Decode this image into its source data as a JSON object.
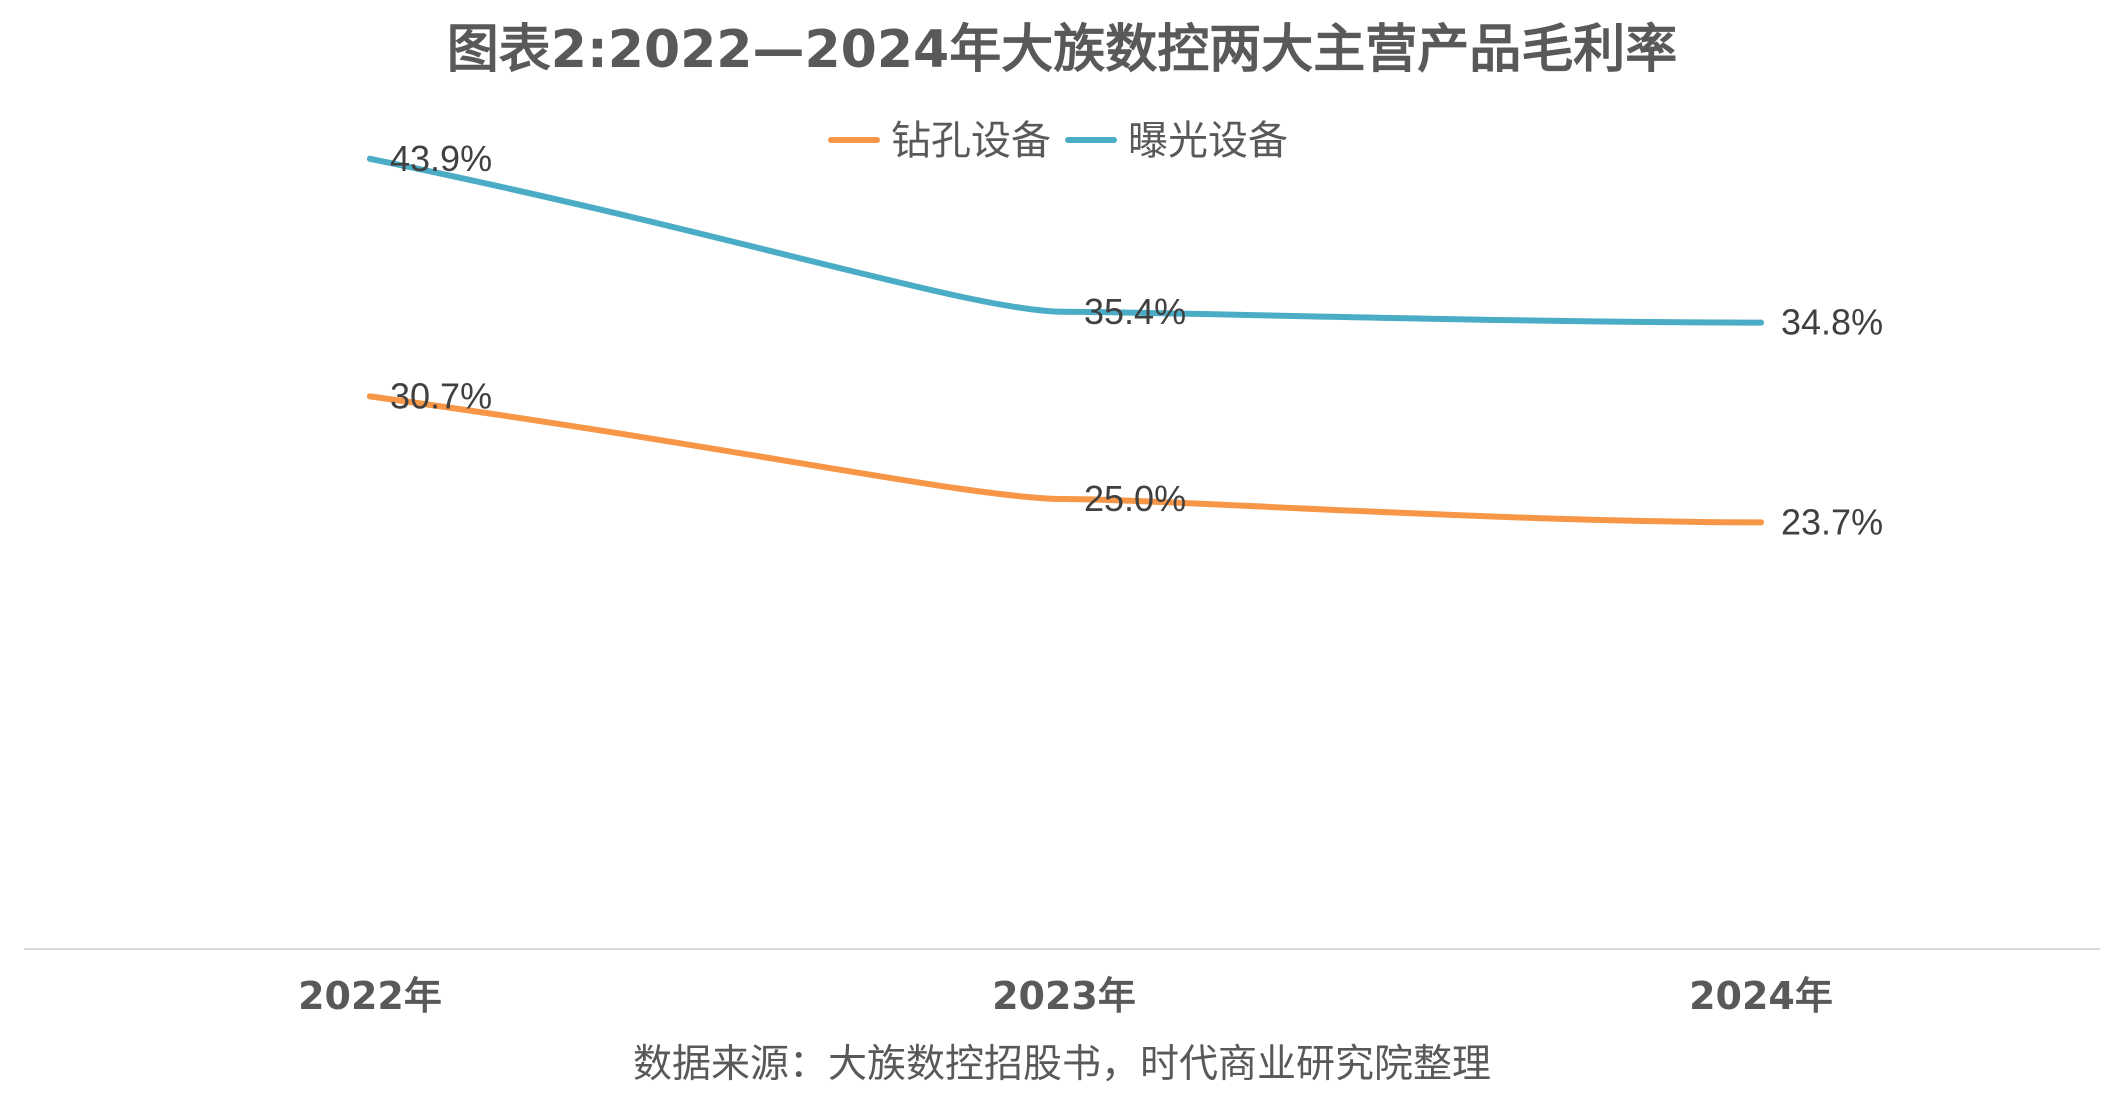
{
  "chart_data": {
    "type": "line",
    "title": "图表2:2022—2024年大族数控两大主营产品毛利率",
    "categories": [
      "2022年",
      "2023年",
      "2024年"
    ],
    "series": [
      {
        "name": "钻孔设备",
        "color": "#F79646",
        "values": [
          30.7,
          25.0,
          23.7
        ],
        "labels": [
          "30.7%",
          "25.0%",
          "23.7%"
        ]
      },
      {
        "name": "曝光设备",
        "color": "#4BACC6",
        "values": [
          43.9,
          35.4,
          34.8
        ],
        "labels": [
          "43.9%",
          "35.4%",
          "34.8%"
        ]
      }
    ],
    "ylim": [
      0,
      50
    ],
    "grid": false,
    "legend_position": "top-center",
    "source": "数据来源：大族数控招股书，时代商业研究院整理"
  }
}
